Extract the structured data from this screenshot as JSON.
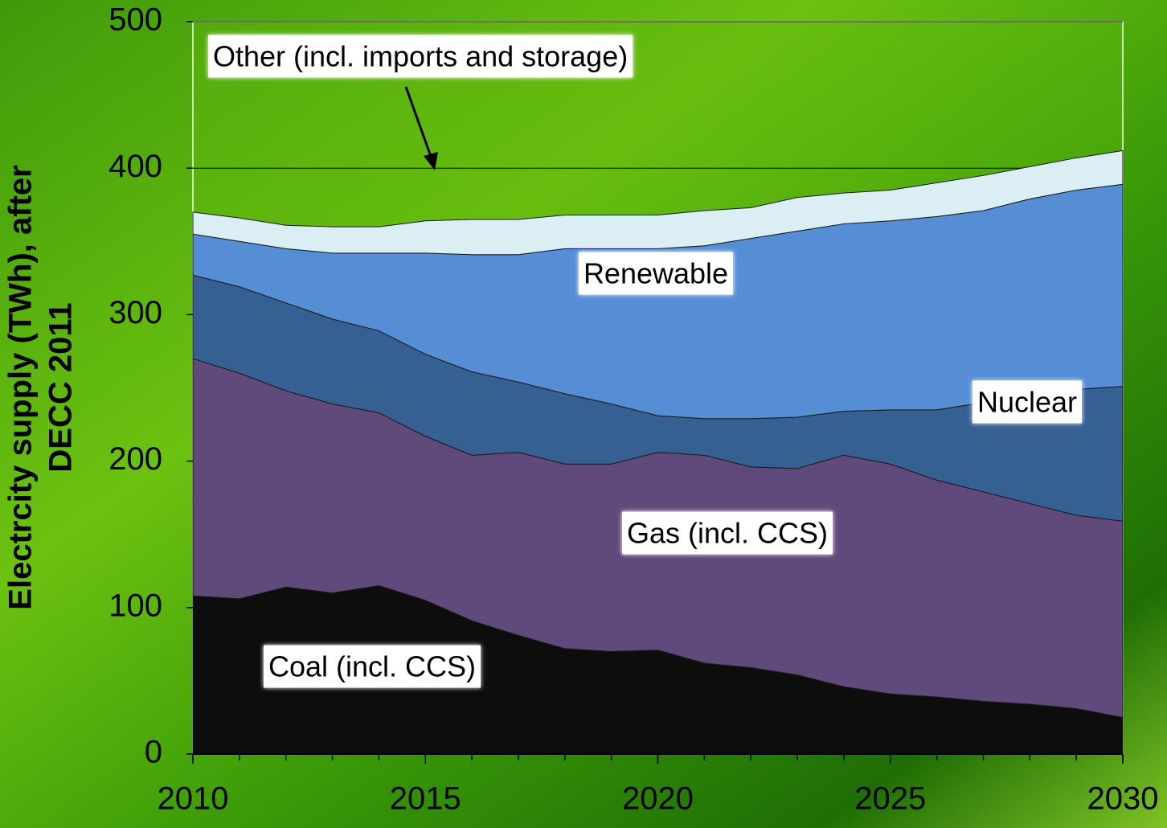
{
  "chart_data": {
    "type": "stacked_area",
    "ylabel": [
      "Electrcity supply (TWh), after",
      "DECC 2011"
    ],
    "x": [
      2010,
      2011,
      2012,
      2013,
      2014,
      2015,
      2016,
      2017,
      2018,
      2019,
      2020,
      2021,
      2022,
      2023,
      2024,
      2025,
      2026,
      2027,
      2028,
      2029,
      2030
    ],
    "series": [
      {
        "name": "Coal (incl. CCS)",
        "color": "#0d0d0d",
        "values": [
          108,
          106,
          114,
          110,
          115,
          105,
          91,
          81,
          72,
          70,
          71,
          62,
          59,
          54,
          46,
          41,
          39,
          36,
          34,
          31,
          25
        ]
      },
      {
        "name": "Gas (incl. CCS)",
        "color": "#604a7b",
        "values": [
          162,
          154,
          134,
          129,
          118,
          112,
          113,
          125,
          126,
          128,
          135,
          142,
          137,
          141,
          158,
          157,
          148,
          143,
          137,
          132,
          134
        ]
      },
      {
        "name": "Nuclear",
        "color": "#366092",
        "values": [
          57,
          59,
          60,
          58,
          56,
          56,
          57,
          48,
          48,
          41,
          25,
          25,
          33,
          35,
          30,
          37,
          48,
          61,
          75,
          86,
          92
        ]
      },
      {
        "name": "Renewable",
        "color": "#558ed5",
        "values": [
          28,
          31,
          37,
          45,
          53,
          69,
          80,
          87,
          99,
          106,
          114,
          118,
          123,
          127,
          128,
          129,
          132,
          131,
          133,
          136,
          138
        ]
      },
      {
        "name": "Other (incl. imports and storage)",
        "color": "#dbeef4",
        "values": [
          15,
          16,
          16,
          18,
          18,
          22,
          24,
          24,
          23,
          23,
          23,
          24,
          21,
          23,
          21,
          21,
          23,
          24,
          22,
          22,
          23
        ]
      }
    ],
    "xlim": [
      2010,
      2030
    ],
    "xticks": [
      2010,
      2015,
      2020,
      2025,
      2030
    ],
    "ylim": [
      0,
      500
    ],
    "yticks": [
      0,
      100,
      200,
      300,
      400,
      500
    ],
    "grid": true,
    "legend": "labels"
  }
}
